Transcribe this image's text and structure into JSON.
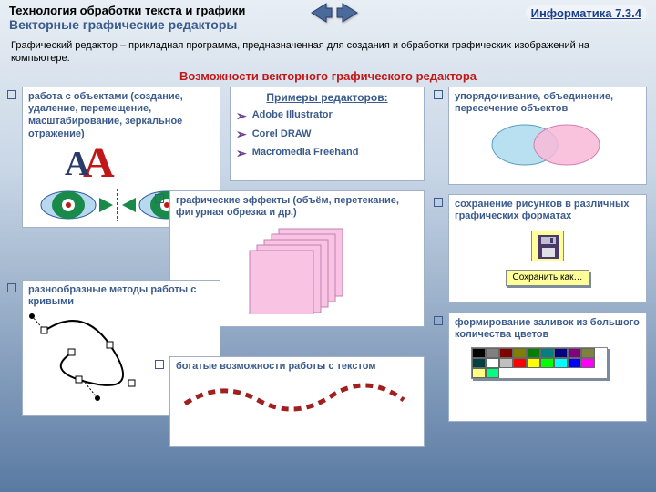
{
  "header": {
    "title1": "Технология обработки текста и графики",
    "title2": "Векторные графические редакторы",
    "link": "Информатика 7.3.4"
  },
  "intro": "Графический редактор – прикладная программа, предназначенная для создания и обработки графических изображений на компьютере.",
  "subheader": "Возможности векторного графического редактора",
  "b1": "работа с объектами (создание, удаление, перемещение, масштабирование, зеркальное отражение)",
  "examples": {
    "title": "Примеры редакторов:",
    "items": [
      "Adobe Illustrator",
      "Corel DRAW",
      "Macromedia Freehand"
    ]
  },
  "b2": "упорядочивание, объединение, пересечение объектов",
  "b3": "графические эффекты (объём, перетекание, фигурная обрезка и др.)",
  "b4": {
    "text": "сохранение рисунков в различных графических форматах",
    "btn": "Сохранить как…"
  },
  "b5": "разнообразные методы работы с кривыми",
  "b6": "богатые возможности работы с текстом",
  "b7": "формирование заливок из большого количества цветов",
  "palette": [
    "#000000",
    "#808080",
    "#800000",
    "#808000",
    "#008000",
    "#008080",
    "#000080",
    "#800080",
    "#808040",
    "#004040",
    "#ffffff",
    "#c0c0c0",
    "#ff0000",
    "#ffff00",
    "#00ff00",
    "#00ffff",
    "#0000ff",
    "#ff00ff",
    "#ffff80",
    "#00ff80"
  ],
  "colors": {
    "accent": "#3b5b8c",
    "red": "#c01818",
    "pink": "#f9c4e4",
    "cyl1": "#b8e0f0",
    "cyl2": "#f8b8d8"
  }
}
